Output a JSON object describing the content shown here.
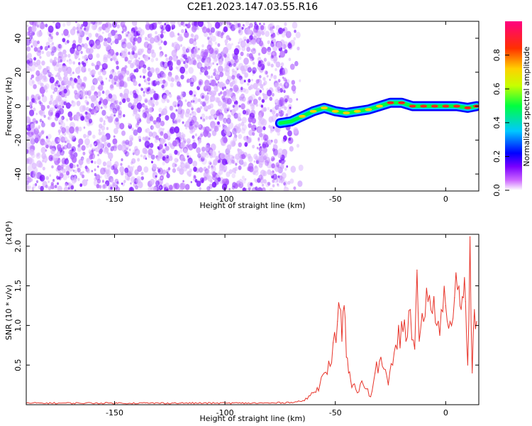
{
  "title": "C2E1.2023.147.03.55.R16",
  "colors": {
    "line": "#e8342a",
    "noise": "#8a2be2",
    "axis": "#000000",
    "background": "#ffffff"
  },
  "chart_data": [
    {
      "type": "heatmap",
      "xlabel": "Height of straight line (km)",
      "ylabel": "Frequency (Hz)",
      "xlim": [
        -190,
        15
      ],
      "ylim": [
        -50,
        50
      ],
      "x_ticks": [
        -150,
        -100,
        -50,
        0
      ],
      "x_tick_labels": [
        "-150",
        "-100",
        "-50",
        "0"
      ],
      "y_ticks": [
        -40,
        -20,
        0,
        20,
        40
      ],
      "y_tick_labels": [
        "-40",
        "-20",
        "0",
        "20",
        "40"
      ],
      "noise_region_x": [
        -190,
        -72
      ],
      "signal_trace": {
        "x": [
          -75,
          -70,
          -65,
          -60,
          -55,
          -50,
          -45,
          -40,
          -35,
          -30,
          -25,
          -20,
          -15,
          -10,
          -5,
          0,
          5,
          10,
          14
        ],
        "y": [
          -10,
          -9,
          -6,
          -3,
          -1,
          -3,
          -4,
          -3,
          -2,
          0,
          2,
          2,
          0,
          0,
          0,
          0,
          0,
          -1,
          0
        ]
      },
      "colorbar": {
        "label": "Normalized spectral amplitude",
        "range": [
          0,
          1
        ],
        "ticks": [
          0.0,
          0.2,
          0.4,
          0.6,
          0.8
        ],
        "tick_labels": [
          "0.0",
          "0.2",
          "0.4",
          "0.6",
          "0.8"
        ]
      },
      "grid": false
    },
    {
      "type": "line",
      "xlabel": "Height of straight line (km)",
      "ylabel": "SNR (10 * v/v)",
      "y_multiplier": "(x10⁴)",
      "xlim": [
        -190,
        15
      ],
      "ylim": [
        0,
        2.15
      ],
      "x_ticks": [
        -150,
        -100,
        -50,
        0
      ],
      "x_tick_labels": [
        "-150",
        "-100",
        "-50",
        "0"
      ],
      "y_ticks": [
        0.5,
        1.0,
        1.5,
        2.0
      ],
      "y_tick_labels": [
        "0.5",
        "1.0",
        "1.5",
        "2.0"
      ],
      "series": [
        {
          "x": [
            -190,
            -120,
            -80,
            -70,
            -64,
            -60,
            -57,
            -55,
            -53,
            -51,
            -49,
            -48,
            -47,
            -46,
            -45,
            -44,
            -43,
            -42,
            -40,
            -38,
            -36,
            -34,
            -32,
            -30,
            -28,
            -26,
            -24,
            -22,
            -20,
            -18,
            -16,
            -14,
            -13,
            -12,
            -10,
            -8,
            -6,
            -4,
            -2,
            0,
            2,
            4,
            6,
            7,
            8,
            9,
            10,
            11,
            12,
            13,
            14
          ],
          "values": [
            0.02,
            0.02,
            0.02,
            0.03,
            0.05,
            0.15,
            0.25,
            0.4,
            0.55,
            0.78,
            1.05,
            1.22,
            0.8,
            1.25,
            0.6,
            0.4,
            0.3,
            0.25,
            0.15,
            0.3,
            0.2,
            0.1,
            0.4,
            0.55,
            0.45,
            0.25,
            0.5,
            0.7,
            1.05,
            0.8,
            1.2,
            0.7,
            1.7,
            0.8,
            1.05,
            1.3,
            1.15,
            1.0,
            1.2,
            1.25,
            1.05,
            1.35,
            1.5,
            1.2,
            1.35,
            1.3,
            0.5,
            2.12,
            0.4,
            1.2,
            1.05
          ]
        }
      ],
      "grid": false
    }
  ]
}
